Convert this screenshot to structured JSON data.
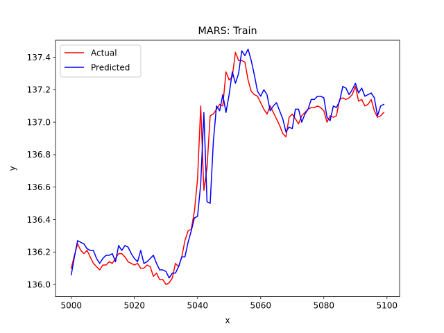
{
  "chart_data": {
    "type": "line",
    "title": "MARS: Train",
    "xlabel": "x",
    "ylabel": "y",
    "xlim": [
      4995,
      5104
    ],
    "ylim": [
      135.925,
      137.505
    ],
    "xticks": [
      5000,
      5020,
      5040,
      5060,
      5080,
      5100
    ],
    "yticks": [
      136.0,
      136.2,
      136.4,
      136.6,
      136.8,
      137.0,
      137.2,
      137.4
    ],
    "ytick_labels": [
      "136.0",
      "136.2",
      "136.4",
      "136.6",
      "136.8",
      "137.0",
      "137.2",
      "137.4"
    ],
    "grid": false,
    "legend_position": "upper-left",
    "x": [
      5000,
      5001,
      5002,
      5003,
      5004,
      5005,
      5006,
      5007,
      5008,
      5009,
      5010,
      5011,
      5012,
      5013,
      5014,
      5015,
      5016,
      5017,
      5018,
      5019,
      5020,
      5021,
      5022,
      5023,
      5024,
      5025,
      5026,
      5027,
      5028,
      5029,
      5030,
      5031,
      5032,
      5033,
      5034,
      5035,
      5036,
      5037,
      5038,
      5039,
      5040,
      5041,
      5042,
      5043,
      5044,
      5045,
      5046,
      5047,
      5048,
      5049,
      5050,
      5051,
      5052,
      5053,
      5054,
      5055,
      5056,
      5057,
      5058,
      5059,
      5060,
      5061,
      5062,
      5063,
      5064,
      5065,
      5066,
      5067,
      5068,
      5069,
      5070,
      5071,
      5072,
      5073,
      5074,
      5075,
      5076,
      5077,
      5078,
      5079,
      5080,
      5081,
      5082,
      5083,
      5084,
      5085,
      5086,
      5087,
      5088,
      5089,
      5090,
      5091,
      5092,
      5093,
      5094,
      5095,
      5096,
      5097,
      5098,
      5099
    ],
    "series": [
      {
        "name": "Actual",
        "color": "#ff0000",
        "values": [
          136.1,
          136.18,
          136.25,
          136.21,
          136.19,
          136.21,
          136.17,
          136.13,
          136.11,
          136.09,
          136.12,
          136.12,
          136.14,
          136.13,
          136.16,
          136.19,
          136.19,
          136.17,
          136.14,
          136.13,
          136.12,
          136.13,
          136.1,
          136.1,
          136.12,
          136.11,
          136.05,
          136.07,
          136.03,
          136.03,
          136.0,
          136.01,
          136.04,
          136.13,
          136.11,
          136.17,
          136.27,
          136.33,
          136.34,
          136.45,
          136.65,
          137.1,
          136.58,
          136.72,
          137.04,
          137.05,
          137.08,
          137.11,
          137.1,
          137.31,
          137.26,
          137.28,
          137.43,
          137.38,
          137.38,
          137.37,
          137.26,
          137.19,
          137.17,
          137.16,
          137.12,
          137.08,
          137.05,
          137.1,
          137.06,
          137.02,
          136.98,
          136.93,
          136.91,
          137.03,
          137.05,
          137.02,
          136.99,
          137.04,
          137.06,
          137.08,
          137.09,
          137.09,
          137.1,
          137.09,
          137.07,
          137.0,
          137.04,
          137.03,
          137.04,
          137.14,
          137.15,
          137.14,
          137.15,
          137.17,
          137.22,
          137.13,
          137.14,
          137.1,
          137.11,
          137.14,
          137.07,
          137.03,
          137.04,
          137.06
        ]
      },
      {
        "name": "Predicted",
        "color": "#0000ff",
        "values": [
          136.06,
          136.17,
          136.27,
          136.26,
          136.25,
          136.22,
          136.21,
          136.21,
          136.16,
          136.13,
          136.16,
          136.18,
          136.18,
          136.19,
          136.14,
          136.24,
          136.21,
          136.24,
          136.23,
          136.19,
          136.16,
          136.14,
          136.21,
          136.13,
          136.14,
          136.16,
          136.18,
          136.13,
          136.09,
          136.09,
          136.08,
          136.04,
          136.07,
          136.07,
          136.11,
          136.17,
          136.17,
          136.26,
          136.33,
          136.41,
          136.42,
          136.62,
          137.06,
          136.51,
          136.5,
          136.88,
          137.1,
          137.07,
          137.17,
          137.06,
          137.17,
          137.31,
          137.24,
          137.3,
          137.44,
          137.41,
          137.45,
          137.38,
          137.29,
          137.19,
          137.16,
          137.2,
          137.17,
          137.07,
          137.1,
          137.12,
          137.07,
          137.02,
          136.94,
          136.97,
          136.96,
          137.08,
          137.08,
          137.0,
          137.05,
          137.08,
          137.14,
          137.14,
          137.16,
          137.16,
          137.15,
          137.03,
          137.01,
          137.1,
          137.09,
          137.13,
          137.22,
          137.21,
          137.17,
          137.2,
          137.24,
          137.18,
          137.21,
          137.16,
          137.17,
          137.18,
          137.15,
          137.04,
          137.1,
          137.11
        ]
      }
    ]
  }
}
